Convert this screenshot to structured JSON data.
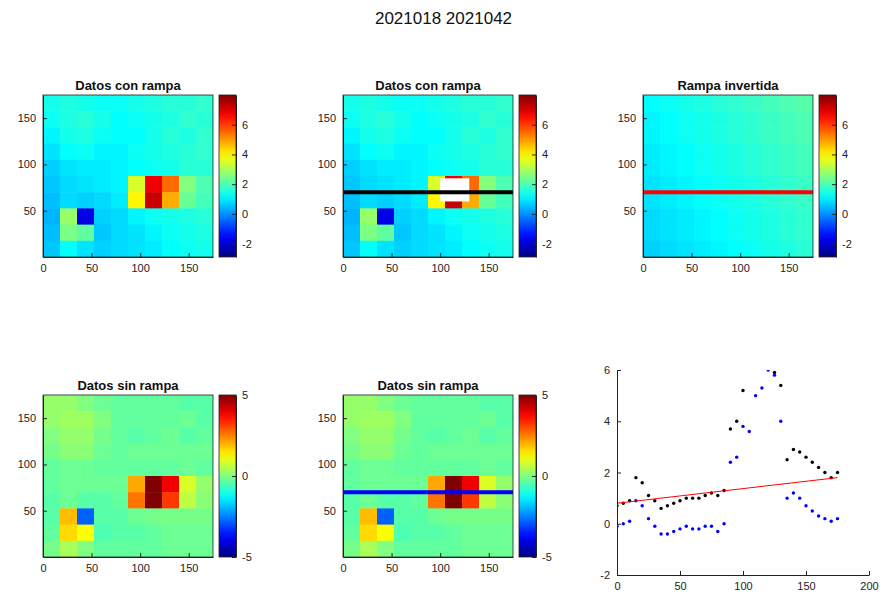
{
  "title": "2021018 2021042",
  "chart_data": [
    {
      "type": "heatmap",
      "title": "Datos con rampa",
      "xlim": [
        0,
        175
      ],
      "ylim": [
        0,
        175
      ],
      "xticks": [
        0,
        50,
        100,
        150
      ],
      "yticks": [
        50,
        100,
        150
      ],
      "colorbar_range": [
        -2.9,
        8
      ],
      "colorbar_ticks": [
        -2,
        0,
        2,
        4,
        6
      ],
      "cells": [
        [
          1.4,
          1.5,
          1.4,
          1.3,
          1.3,
          1.4,
          1.5,
          1.6,
          1.6,
          1.7
        ],
        [
          1.3,
          1.5,
          1.6,
          1.4,
          1.2,
          1.3,
          1.4,
          1.5,
          1.7,
          1.6
        ],
        [
          1.1,
          1.4,
          1.5,
          1.3,
          1.2,
          1.2,
          1.4,
          1.6,
          1.5,
          1.7
        ],
        [
          0.9,
          1.2,
          1.3,
          1.1,
          1.1,
          1.3,
          1.4,
          1.5,
          1.6,
          1.7
        ],
        [
          0.7,
          0.9,
          1.0,
          1.0,
          1.1,
          1.2,
          1.3,
          1.4,
          1.6,
          1.6
        ],
        [
          0.6,
          0.8,
          0.9,
          1.0,
          1.1,
          3.5,
          6.8,
          5.5,
          2.6,
          2.0
        ],
        [
          0.5,
          0.8,
          0.7,
          0.8,
          1.0,
          4.0,
          7.2,
          4.8,
          2.3,
          1.9
        ],
        [
          0.4,
          2.8,
          -1.8,
          0.7,
          0.8,
          1.1,
          1.3,
          1.4,
          1.5,
          1.6
        ],
        [
          0.5,
          2.5,
          2.2,
          0.6,
          0.8,
          0.9,
          1.1,
          1.3,
          1.4,
          1.5
        ],
        [
          0.6,
          1.2,
          0.9,
          0.7,
          0.8,
          0.9,
          1.0,
          1.2,
          1.3,
          1.4
        ]
      ]
    },
    {
      "type": "heatmap",
      "title": "Datos con rampa",
      "xlim": [
        0,
        175
      ],
      "ylim": [
        0,
        175
      ],
      "xticks": [
        0,
        50,
        100,
        150
      ],
      "yticks": [
        50,
        100,
        150
      ],
      "colorbar_range": [
        -2.9,
        8
      ],
      "colorbar_ticks": [
        -2,
        0,
        2,
        4,
        6
      ],
      "profile": {
        "y": 70,
        "color": "#000000"
      },
      "mask": {
        "x": [
          100,
          130
        ],
        "y": [
          60,
          85
        ],
        "color": "#ffffff"
      },
      "cells": [
        [
          1.4,
          1.5,
          1.4,
          1.3,
          1.3,
          1.4,
          1.5,
          1.6,
          1.6,
          1.7
        ],
        [
          1.3,
          1.5,
          1.6,
          1.4,
          1.2,
          1.3,
          1.4,
          1.5,
          1.7,
          1.6
        ],
        [
          1.1,
          1.4,
          1.5,
          1.3,
          1.2,
          1.2,
          1.4,
          1.6,
          1.5,
          1.7
        ],
        [
          0.9,
          1.2,
          1.3,
          1.1,
          1.1,
          1.3,
          1.4,
          1.5,
          1.6,
          1.7
        ],
        [
          0.7,
          0.9,
          1.0,
          1.0,
          1.1,
          1.2,
          1.3,
          1.4,
          1.6,
          1.6
        ],
        [
          0.6,
          0.8,
          0.9,
          1.0,
          1.1,
          3.5,
          6.8,
          5.5,
          2.6,
          2.0
        ],
        [
          0.5,
          0.8,
          0.7,
          0.8,
          1.0,
          4.0,
          7.2,
          4.8,
          2.3,
          1.9
        ],
        [
          0.4,
          2.8,
          -1.8,
          0.7,
          0.8,
          1.1,
          1.3,
          1.4,
          1.5,
          1.6
        ],
        [
          0.5,
          2.5,
          2.2,
          0.6,
          0.8,
          0.9,
          1.1,
          1.3,
          1.4,
          1.5
        ],
        [
          0.6,
          1.2,
          0.9,
          0.7,
          0.8,
          0.9,
          1.0,
          1.2,
          1.3,
          1.4
        ]
      ]
    },
    {
      "type": "heatmap",
      "title": "Rampa invertida",
      "xlim": [
        0,
        175
      ],
      "ylim": [
        0,
        175
      ],
      "xticks": [
        0,
        50,
        100,
        150
      ],
      "yticks": [
        50,
        100,
        150
      ],
      "colorbar_range": [
        -2.9,
        8
      ],
      "colorbar_ticks": [
        -2,
        0,
        2,
        4,
        6
      ],
      "profile": {
        "y": 70,
        "color": "#ff0000"
      },
      "cells": [
        [
          1.2,
          1.3,
          1.4,
          1.5,
          1.6,
          1.7,
          1.8,
          1.9,
          2.0,
          2.1
        ],
        [
          1.1,
          1.2,
          1.3,
          1.4,
          1.5,
          1.6,
          1.7,
          1.8,
          1.9,
          2.0
        ],
        [
          1.1,
          1.2,
          1.3,
          1.4,
          1.5,
          1.6,
          1.7,
          1.8,
          1.9,
          2.0
        ],
        [
          1.0,
          1.1,
          1.2,
          1.3,
          1.4,
          1.5,
          1.6,
          1.7,
          1.8,
          1.9
        ],
        [
          1.0,
          1.1,
          1.2,
          1.3,
          1.4,
          1.5,
          1.6,
          1.7,
          1.8,
          1.9
        ],
        [
          0.9,
          1.0,
          1.1,
          1.2,
          1.3,
          1.4,
          1.5,
          1.6,
          1.7,
          1.8
        ],
        [
          0.9,
          1.0,
          1.1,
          1.2,
          1.3,
          1.4,
          1.5,
          1.6,
          1.7,
          1.8
        ],
        [
          0.8,
          0.9,
          1.0,
          1.1,
          1.2,
          1.3,
          1.4,
          1.5,
          1.6,
          1.7
        ],
        [
          0.8,
          0.9,
          1.0,
          1.1,
          1.2,
          1.3,
          1.4,
          1.5,
          1.6,
          1.7
        ],
        [
          0.7,
          0.8,
          0.9,
          1.0,
          1.1,
          1.2,
          1.3,
          1.4,
          1.5,
          1.6
        ]
      ]
    },
    {
      "type": "heatmap",
      "title": "Datos sin rampa",
      "xlim": [
        0,
        175
      ],
      "ylim": [
        0,
        175
      ],
      "xticks": [
        0,
        50,
        100,
        150
      ],
      "yticks": [
        50,
        100,
        150
      ],
      "colorbar_range": [
        -5,
        5
      ],
      "colorbar_ticks": [
        -5,
        0,
        5
      ],
      "cells": [
        [
          0.2,
          0.2,
          0.0,
          -0.2,
          -0.3,
          -0.3,
          -0.3,
          -0.3,
          -0.4,
          -0.4
        ],
        [
          0.2,
          0.3,
          0.3,
          0.0,
          -0.3,
          -0.3,
          -0.3,
          -0.3,
          -0.2,
          -0.4
        ],
        [
          0.0,
          0.2,
          0.2,
          -0.1,
          -0.3,
          -0.4,
          -0.3,
          -0.2,
          -0.4,
          -0.3
        ],
        [
          -0.1,
          0.1,
          0.1,
          -0.2,
          -0.3,
          -0.2,
          -0.2,
          -0.2,
          -0.2,
          -0.2
        ],
        [
          -0.3,
          -0.2,
          -0.2,
          -0.3,
          -0.3,
          -0.3,
          -0.3,
          -0.3,
          -0.2,
          -0.3
        ],
        [
          -0.3,
          -0.2,
          -0.2,
          -0.2,
          -0.2,
          2.1,
          5.3,
          3.9,
          0.9,
          0.2
        ],
        [
          -0.4,
          -0.2,
          -0.4,
          -0.4,
          -0.3,
          2.6,
          5.7,
          3.2,
          0.6,
          0.1
        ],
        [
          -0.4,
          1.9,
          -2.8,
          -0.4,
          -0.4,
          -0.2,
          -0.1,
          -0.1,
          -0.1,
          -0.1
        ],
        [
          -0.3,
          1.6,
          1.2,
          -0.5,
          -0.4,
          -0.4,
          -0.3,
          -0.2,
          -0.2,
          -0.2
        ],
        [
          -0.1,
          0.4,
          0.0,
          -0.3,
          -0.3,
          -0.3,
          -0.3,
          -0.2,
          -0.2,
          -0.2
        ]
      ]
    },
    {
      "type": "heatmap",
      "title": "Datos sin rampa",
      "xlim": [
        0,
        175
      ],
      "ylim": [
        0,
        175
      ],
      "xticks": [
        0,
        50,
        100,
        150
      ],
      "yticks": [
        50,
        100,
        150
      ],
      "colorbar_range": [
        -5,
        5
      ],
      "colorbar_ticks": [
        -5,
        0,
        5
      ],
      "profile": {
        "y": 70,
        "color": "#0000ff"
      },
      "cells": [
        [
          0.2,
          0.2,
          0.0,
          -0.2,
          -0.3,
          -0.3,
          -0.3,
          -0.3,
          -0.4,
          -0.4
        ],
        [
          0.2,
          0.3,
          0.3,
          0.0,
          -0.3,
          -0.3,
          -0.3,
          -0.3,
          -0.2,
          -0.4
        ],
        [
          0.0,
          0.2,
          0.2,
          -0.1,
          -0.3,
          -0.4,
          -0.3,
          -0.2,
          -0.4,
          -0.3
        ],
        [
          -0.1,
          0.1,
          0.1,
          -0.2,
          -0.3,
          -0.2,
          -0.2,
          -0.2,
          -0.2,
          -0.2
        ],
        [
          -0.3,
          -0.2,
          -0.2,
          -0.3,
          -0.3,
          -0.3,
          -0.3,
          -0.3,
          -0.2,
          -0.3
        ],
        [
          -0.3,
          -0.2,
          -0.2,
          -0.2,
          -0.2,
          2.1,
          5.3,
          3.9,
          0.9,
          0.2
        ],
        [
          -0.4,
          -0.2,
          -0.4,
          -0.4,
          -0.3,
          2.6,
          5.7,
          3.2,
          0.6,
          0.1
        ],
        [
          -0.4,
          1.9,
          -2.8,
          -0.4,
          -0.4,
          -0.2,
          -0.1,
          -0.1,
          -0.1,
          -0.1
        ],
        [
          -0.3,
          1.6,
          1.2,
          -0.5,
          -0.4,
          -0.4,
          -0.3,
          -0.2,
          -0.2,
          -0.2
        ],
        [
          -0.1,
          0.4,
          0.0,
          -0.3,
          -0.3,
          -0.3,
          -0.3,
          -0.2,
          -0.2,
          -0.2
        ]
      ]
    },
    {
      "type": "scatter",
      "xlim": [
        0,
        200
      ],
      "ylim": [
        -2,
        6
      ],
      "xticks": [
        0,
        50,
        100,
        150,
        200
      ],
      "yticks": [
        -2,
        0,
        2,
        4,
        6
      ],
      "x": [
        0,
        5,
        10,
        15,
        20,
        25,
        30,
        35,
        40,
        45,
        50,
        55,
        60,
        65,
        70,
        75,
        80,
        85,
        90,
        95,
        100,
        105,
        110,
        115,
        120,
        125,
        130,
        135,
        140,
        145,
        150,
        155,
        160,
        165,
        170,
        175
      ],
      "series": [
        {
          "color": "#000000",
          "marker": "dot",
          "values": [
            0.7,
            0.8,
            0.9,
            1.8,
            1.6,
            1.1,
            0.9,
            0.6,
            0.7,
            0.8,
            0.9,
            1.0,
            1.0,
            1.0,
            1.1,
            1.2,
            1.1,
            1.3,
            3.7,
            4.0,
            5.2,
            null,
            null,
            null,
            null,
            5.9,
            5.4,
            2.5,
            2.9,
            2.8,
            2.6,
            2.4,
            2.2,
            2.0,
            1.8,
            2.0
          ]
        },
        {
          "color": "#0000ff",
          "marker": "dot",
          "values": [
            -0.1,
            0.0,
            0.1,
            0.9,
            0.7,
            0.2,
            -0.1,
            -0.4,
            -0.4,
            -0.3,
            -0.2,
            -0.1,
            -0.2,
            -0.2,
            -0.1,
            -0.1,
            -0.3,
            0.0,
            2.4,
            2.6,
            3.8,
            3.6,
            5.0,
            5.3,
            6.0,
            5.8,
            4.0,
            1.0,
            1.2,
            1.0,
            0.7,
            0.5,
            0.3,
            0.2,
            0.1,
            0.2
          ]
        },
        {
          "type": "line",
          "color": "#ff0000",
          "line_style": "solid",
          "x": [
            0,
            175
          ],
          "values": [
            0.8,
            1.8
          ]
        }
      ]
    }
  ]
}
